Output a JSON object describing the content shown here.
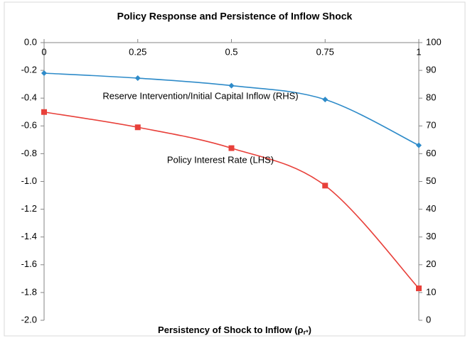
{
  "chart_data": {
    "type": "line",
    "title": "Policy Response and Persistence of Inflow Shock",
    "x_label": "Persistency of Shock to Inflow (ρ",
    "x_label_sub": "r*",
    "x_label_end": ")",
    "x": [
      0,
      0.25,
      0.5,
      0.75,
      1
    ],
    "xlim": [
      0,
      1
    ],
    "xticks": [
      0,
      0.25,
      0.5,
      0.75,
      1
    ],
    "ylim": [
      -2,
      0
    ],
    "yticks": [
      {
        "value": 0,
        "label": "0.0"
      },
      {
        "value": -0.2,
        "label": "-0.2"
      },
      {
        "value": -0.4,
        "label": "-0.4"
      },
      {
        "value": -0.6,
        "label": "-0.6"
      },
      {
        "value": -0.8,
        "label": "-0.8"
      },
      {
        "value": -1,
        "label": "-1.0"
      },
      {
        "value": -1.2,
        "label": "-1.2"
      },
      {
        "value": -1.4,
        "label": "-1.4"
      },
      {
        "value": -1.6,
        "label": "-1.6"
      },
      {
        "value": -1.8,
        "label": "-1.8"
      },
      {
        "value": -2,
        "label": "-2.0"
      }
    ],
    "y2lim": [
      0,
      100
    ],
    "y2ticks": [
      0,
      10,
      20,
      30,
      40,
      50,
      60,
      70,
      80,
      90,
      100
    ],
    "grid": false,
    "series": [
      {
        "name": "Reserve Intervention/Initial Capital Inflow (RHS)",
        "color": "#2e8bc9",
        "marker": "diamond",
        "axis": "y2",
        "values": [
          89,
          87.2,
          84.5,
          79.5,
          63
        ]
      },
      {
        "name": "Policy Interest Rate (LHS)",
        "color": "#e8403a",
        "marker": "square",
        "values": [
          -0.5,
          -0.61,
          -0.76,
          -1.03,
          -1.77
        ]
      }
    ]
  }
}
